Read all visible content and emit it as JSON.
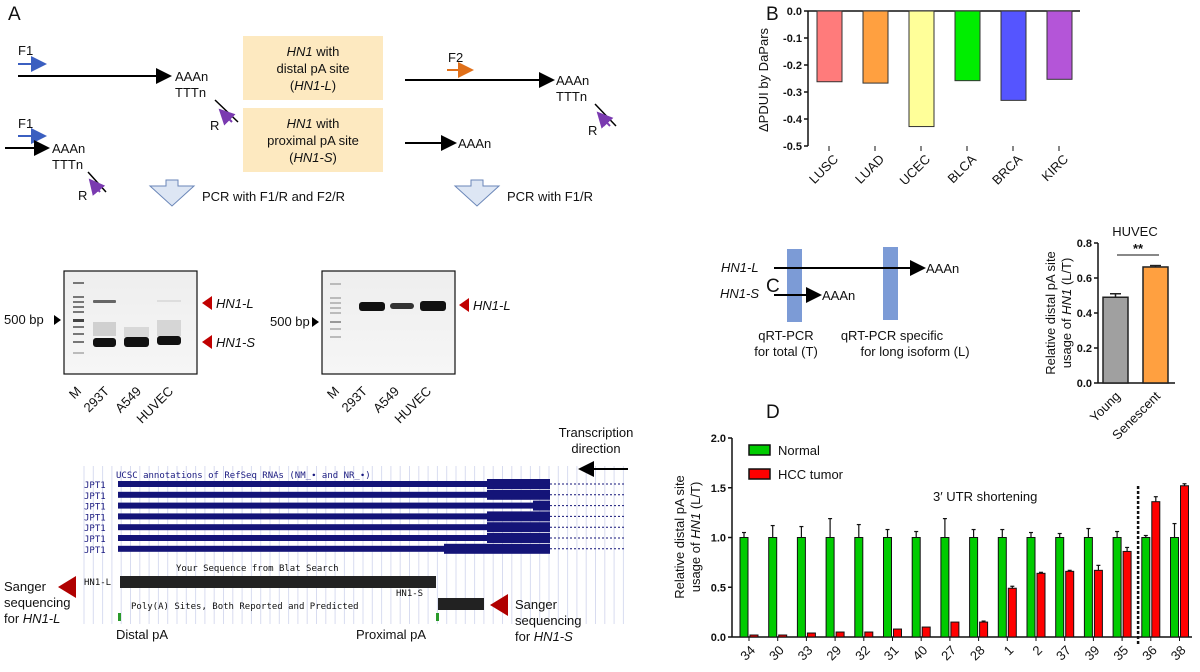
{
  "panels": {
    "a": "A",
    "b": "B",
    "c": "C",
    "d": "D"
  },
  "panel_a": {
    "f1": "F1",
    "f2": "F2",
    "r": "R",
    "aaan": "AAAn",
    "tttn": "TTTn",
    "box_long": {
      "gene": "HN1",
      "line1": " with",
      "line2": "distal pA site",
      "line3_pre": "(",
      "line3_it": "HN1-L",
      "line3_post": ")"
    },
    "box_short": {
      "gene": "HN1",
      "line1": " with",
      "line2": "proximal pA site",
      "line3_pre": "(",
      "line3_it": "HN1-S",
      "line3_post": ")"
    },
    "pcr_left": "PCR with F1/R and F2/R",
    "pcr_right": "PCR with F1/R",
    "marker": "500 bp",
    "lanes": [
      "M",
      "293T",
      "A549",
      "HUVEC"
    ],
    "band_long": "HN1-L",
    "band_short": "HN1-S",
    "ucsc_title": "UCSC annotations of RefSeq RNAs (NM_∙ and NR_∙)",
    "tracks": [
      "JPT1",
      "JPT1",
      "JPT1",
      "JPT1",
      "JPT1",
      "JPT1",
      "JPT1"
    ],
    "blat": "Your Sequence from Blat Search",
    "blat_long": "HN1-L",
    "blat_short": "HN1-S",
    "polya": "Poly(A) Sites, Both Reported and Predicted",
    "transcription": [
      "Transcription",
      "direction"
    ],
    "sanger_long": [
      "Sanger",
      "sequencing",
      "for ",
      "HN1-L"
    ],
    "sanger_short": [
      "Sanger",
      "sequencing",
      "for ",
      "HN1-S"
    ],
    "distal": "Distal pA",
    "proximal": "Proximal pA"
  },
  "panel_c_diagram": {
    "long": "HN1-L",
    "short": "HN1-S",
    "aaan": "AAAn",
    "total": [
      "qRT-PCR",
      "for total (T)"
    ],
    "specific": [
      "qRT-PCR specific",
      "for long isoform (L)"
    ]
  },
  "chart_data": [
    {
      "id": "B",
      "type": "bar",
      "ylabel": "ΔPDUI by DaPars",
      "ylim": [
        -0.5,
        0.0
      ],
      "yticks": [
        "0.0",
        "-0.1",
        "-0.2",
        "-0.3",
        "-0.4",
        "-0.5"
      ],
      "categories": [
        "LUSC",
        "LUAD",
        "UCEC",
        "BLCA",
        "BRCA",
        "KIRC"
      ],
      "values": [
        -0.262,
        -0.267,
        -0.428,
        -0.258,
        -0.331,
        -0.253
      ],
      "colors": [
        "#ff7b7b",
        "#ffa040",
        "#ffff99",
        "#00ee00",
        "#5555ff",
        "#b455d8"
      ]
    },
    {
      "id": "C",
      "type": "bar",
      "title": "HUVEC",
      "ylabel_line1": "Relative distal pA site",
      "ylabel_line2_pre": "usage of ",
      "ylabel_line2_it": "HN1",
      "ylabel_line2_post": " (L/T)",
      "ylim": [
        0,
        0.8
      ],
      "yticks": [
        "0.0",
        "0.2",
        "0.4",
        "0.6",
        "0.8"
      ],
      "categories": [
        "Young",
        "Senescent"
      ],
      "values": [
        0.49,
        0.663
      ],
      "errors": [
        0.02,
        0.008
      ],
      "colors": [
        "#a0a0a0",
        "#ffa040"
      ],
      "annotation": "**"
    },
    {
      "id": "D",
      "type": "bar",
      "ylabel_line1": "Relative distal pA site",
      "ylabel_line2_pre": "usage of ",
      "ylabel_line2_it": "HN1",
      "ylabel_line2_post": " (L/T)",
      "ylim": [
        0,
        2.0
      ],
      "yticks": [
        "0.0",
        "0.5",
        "1.0",
        "1.5",
        "2.0"
      ],
      "categories": [
        "34",
        "30",
        "33",
        "29",
        "32",
        "31",
        "40",
        "27",
        "28",
        "1",
        "2",
        "37",
        "39",
        "35",
        "36",
        "38"
      ],
      "series": [
        {
          "name": "Normal",
          "color": "#00cc00",
          "values": [
            1,
            1,
            1,
            1,
            1,
            1,
            1,
            1,
            1,
            1,
            1,
            1,
            1,
            1,
            1,
            1
          ],
          "errors": [
            0.05,
            0.12,
            0.11,
            0.19,
            0.13,
            0.08,
            0.06,
            0.19,
            0.08,
            0.08,
            0.05,
            0.04,
            0.09,
            0.06,
            0.02,
            0.14
          ]
        },
        {
          "name": "HCC tumor",
          "color": "#ff0000",
          "values": [
            0.02,
            0.02,
            0.04,
            0.05,
            0.05,
            0.08,
            0.1,
            0.15,
            0.15,
            0.49,
            0.64,
            0.66,
            0.67,
            0.86,
            1.36,
            1.52
          ],
          "errors": [
            0,
            0,
            0,
            0,
            0,
            0,
            0,
            0,
            0.01,
            0.02,
            0.01,
            0.01,
            0.05,
            0.04,
            0.05,
            0.02
          ]
        }
      ],
      "annotation": "3′ UTR shortening",
      "divider_after": "35",
      "legend": "top-left"
    }
  ]
}
